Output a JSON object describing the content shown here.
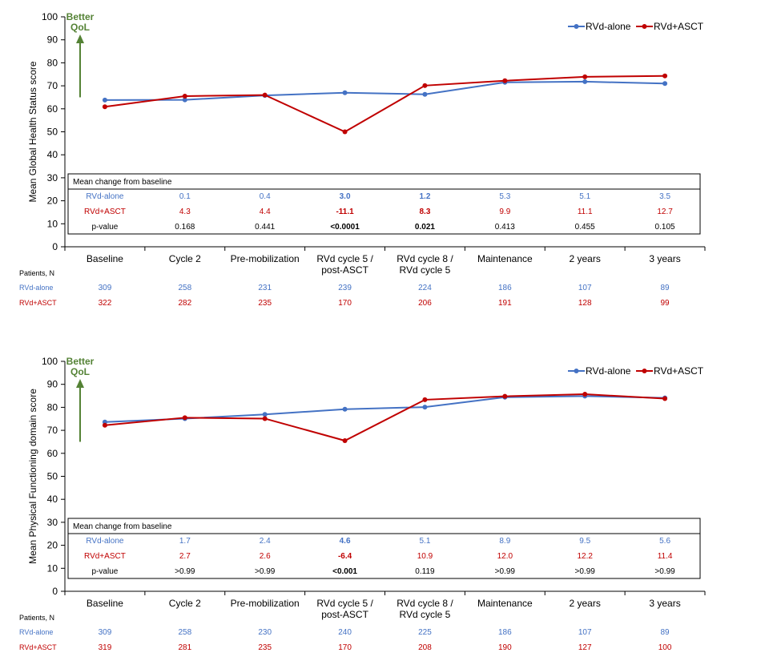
{
  "colors": {
    "rvd": "#4472C4",
    "asct": "#C00000",
    "arrow": "#548235",
    "text": "#000000"
  },
  "categories": [
    "Baseline",
    "Cycle 2",
    "Pre-mobilization",
    "RVd cycle 5 / post-ASCT",
    "RVd cycle 8 / RVd cycle 5",
    "Maintenance",
    "2 years",
    "3 years"
  ],
  "category_lines": [
    [
      "Baseline"
    ],
    [
      "Cycle 2"
    ],
    [
      "Pre-mobilization"
    ],
    [
      "RVd cycle 5 /",
      "post-ASCT"
    ],
    [
      "RVd cycle 8 /",
      "RVd cycle 5"
    ],
    [
      "Maintenance"
    ],
    [
      "2 years"
    ],
    [
      "3 years"
    ]
  ],
  "better_qol": [
    "Better",
    "QoL"
  ],
  "patients_label": "Patients, N",
  "table_title": "Mean change from baseline",
  "chart_data": [
    {
      "type": "line",
      "title": "",
      "ylabel": "Mean Global Health Status score",
      "xlabel": "",
      "ylim": [
        0,
        100
      ],
      "yticks": [
        0,
        10,
        20,
        30,
        40,
        50,
        60,
        70,
        80,
        90,
        100
      ],
      "legend_position": "top-right",
      "series": [
        {
          "name": "RVd-alone",
          "values": [
            63.8,
            63.9,
            65.8,
            67.0,
            66.3,
            71.5,
            71.8,
            71.0
          ]
        },
        {
          "name": "RVd+ASCT",
          "values": [
            60.9,
            65.5,
            66.0,
            50.0,
            70.1,
            72.2,
            73.9,
            74.3
          ]
        }
      ],
      "change_table": {
        "rows": [
          {
            "label": "RVd-alone",
            "series": "rvd",
            "values": [
              "0.1",
              "0.4",
              "3.0",
              "1.2",
              "5.3",
              "5.1",
              "3.5"
            ],
            "bold": [
              false,
              false,
              true,
              true,
              false,
              false,
              false
            ]
          },
          {
            "label": "RVd+ASCT",
            "series": "asct",
            "values": [
              "4.3",
              "4.4",
              "-11.1",
              "8.3",
              "9.9",
              "11.1",
              "12.7"
            ],
            "bold": [
              false,
              false,
              true,
              true,
              false,
              false,
              false
            ]
          },
          {
            "label": "p-value",
            "series": "text",
            "values": [
              "0.168",
              "0.441",
              "<0.0001",
              "0.021",
              "0.413",
              "0.455",
              "0.105"
            ],
            "bold": [
              false,
              false,
              true,
              true,
              false,
              false,
              false
            ]
          }
        ]
      },
      "patients": {
        "rvd": {
          "label": "RVd-alone",
          "values": [
            "309",
            "258",
            "231",
            "239",
            "224",
            "186",
            "107",
            "89"
          ]
        },
        "asct": {
          "label": "RVd+ASCT",
          "values": [
            "322",
            "282",
            "235",
            "170",
            "206",
            "191",
            "128",
            "99"
          ]
        }
      }
    },
    {
      "type": "line",
      "title": "",
      "ylabel": "Mean Physical Functioning domain score",
      "xlabel": "",
      "ylim": [
        0,
        100
      ],
      "yticks": [
        0,
        10,
        20,
        30,
        40,
        50,
        60,
        70,
        80,
        90,
        100
      ],
      "legend_position": "top-right",
      "series": [
        {
          "name": "RVd-alone",
          "values": [
            73.6,
            75.1,
            76.9,
            79.2,
            80.1,
            84.4,
            84.9,
            84.1
          ]
        },
        {
          "name": "RVd+ASCT",
          "values": [
            72.2,
            75.5,
            75.1,
            65.5,
            83.3,
            84.8,
            85.7,
            83.8
          ]
        }
      ],
      "change_table": {
        "rows": [
          {
            "label": "RVd-alone",
            "series": "rvd",
            "values": [
              "1.7",
              "2.4",
              "4.6",
              "5.1",
              "8.9",
              "9.5",
              "5.6"
            ],
            "bold": [
              false,
              false,
              true,
              false,
              false,
              false,
              false
            ]
          },
          {
            "label": "RVd+ASCT",
            "series": "asct",
            "values": [
              "2.7",
              "2.6",
              "-6.4",
              "10.9",
              "12.0",
              "12.2",
              "11.4"
            ],
            "bold": [
              false,
              false,
              true,
              false,
              false,
              false,
              false
            ]
          },
          {
            "label": "p-value",
            "series": "text",
            "values": [
              ">0.99",
              ">0.99",
              "<0.001",
              "0.119",
              ">0.99",
              ">0.99",
              ">0.99"
            ],
            "bold": [
              false,
              false,
              true,
              false,
              false,
              false,
              false
            ]
          }
        ]
      },
      "patients": {
        "rvd": {
          "label": "RVd-alone",
          "values": [
            "309",
            "258",
            "230",
            "240",
            "225",
            "186",
            "107",
            "89"
          ]
        },
        "asct": {
          "label": "RVd+ASCT",
          "values": [
            "319",
            "281",
            "235",
            "170",
            "208",
            "190",
            "127",
            "100"
          ]
        }
      }
    }
  ]
}
